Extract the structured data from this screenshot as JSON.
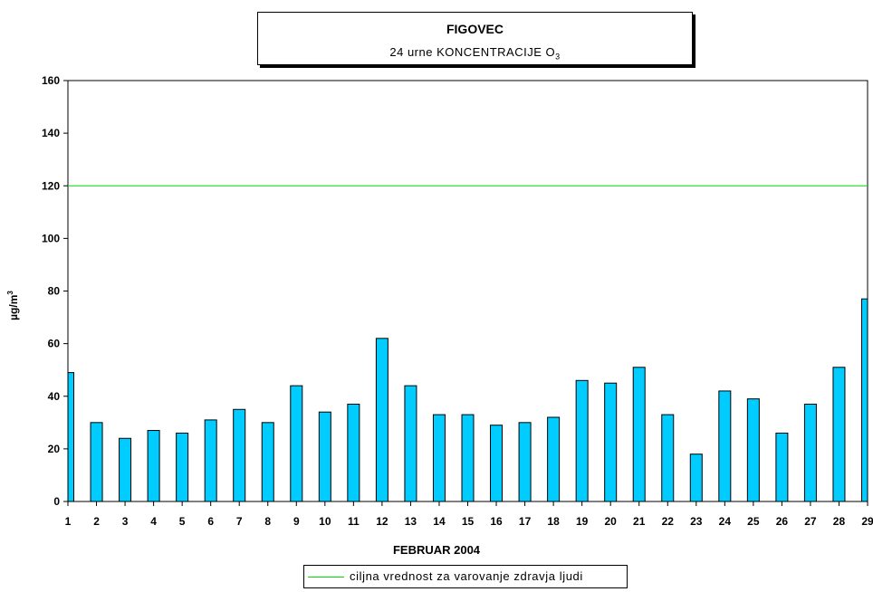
{
  "chart_data": {
    "type": "bar",
    "title": "FIGOVEC",
    "subtitle_prefix": "24 urne KONCENTRACIJE O",
    "subtitle_subscript": "3",
    "ylabel_base": "µg/m",
    "ylabel_sup": "3",
    "xlabel": "FEBRUAR 2004",
    "ylim": [
      0,
      160
    ],
    "yticks": [
      0,
      20,
      40,
      60,
      80,
      100,
      120,
      140,
      160
    ],
    "categories": [
      "1",
      "2",
      "3",
      "4",
      "5",
      "6",
      "7",
      "8",
      "9",
      "10",
      "11",
      "12",
      "13",
      "14",
      "15",
      "16",
      "17",
      "18",
      "19",
      "20",
      "21",
      "22",
      "23",
      "24",
      "25",
      "26",
      "27",
      "28",
      "29"
    ],
    "values": [
      49,
      30,
      24,
      27,
      26,
      31,
      35,
      30,
      44,
      34,
      37,
      62,
      44,
      33,
      33,
      29,
      30,
      32,
      46,
      45,
      51,
      33,
      18,
      42,
      39,
      26,
      37,
      51,
      77
    ],
    "bar_color": "#00ccff",
    "reference_line": {
      "value": 120,
      "color": "#00dd00",
      "label": "ciljna vrednost za varovanje zdravja ljudi"
    },
    "grid": false,
    "legend_position": "bottom-center"
  }
}
